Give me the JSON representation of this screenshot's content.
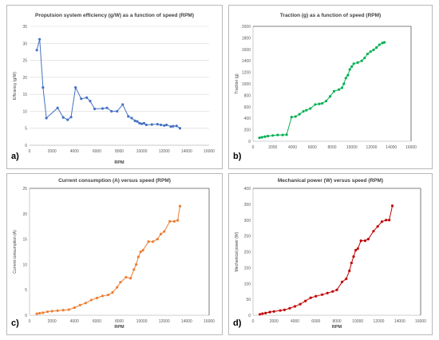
{
  "chart_data": [
    {
      "type": "line",
      "panel_label": "a)",
      "title": "Propulsion system efficiency (g/W) as a function of speed (RPM)",
      "xlabel": "RPM",
      "ylabel": "Efficiency (g/W)",
      "xlim": [
        0,
        16000
      ],
      "ylim": [
        0,
        35
      ],
      "xticks": [
        0,
        2000,
        4000,
        6000,
        8000,
        10000,
        12000,
        14000,
        16000
      ],
      "yticks": [
        0,
        5,
        10,
        15,
        20,
        25,
        30,
        35
      ],
      "grid": true,
      "color": "#4472c4",
      "x": [
        650,
        900,
        1200,
        1500,
        2500,
        3000,
        3400,
        3700,
        4100,
        4600,
        5100,
        5400,
        5800,
        6500,
        6900,
        7300,
        7800,
        8300,
        8800,
        9100,
        9400,
        9600,
        9800,
        10000,
        10200,
        10400,
        10900,
        11400,
        11700,
        12000,
        12200,
        12600,
        12800,
        13100,
        13400
      ],
      "y": [
        28,
        31.2,
        17,
        8,
        11,
        8.2,
        7.5,
        8.3,
        17,
        13.7,
        14,
        13,
        10.7,
        10.8,
        11,
        10,
        10,
        12,
        8.5,
        8,
        7.2,
        7,
        6.5,
        6.3,
        6.5,
        6,
        6.1,
        6.2,
        6,
        5.8,
        6,
        5.5,
        5.6,
        5.7,
        5
      ]
    },
    {
      "type": "line",
      "panel_label": "b)",
      "title": "Traction (g) as a function of speed (RPM)",
      "xlabel": "",
      "ylabel": "Traction (g)",
      "xlim": [
        0,
        16000
      ],
      "ylim": [
        0,
        2000
      ],
      "xticks": [
        0,
        2000,
        4000,
        6000,
        8000,
        10000,
        12000,
        14000,
        16000
      ],
      "yticks": [
        0,
        200,
        400,
        600,
        800,
        1000,
        1200,
        1400,
        1600,
        1800,
        2000
      ],
      "grid": false,
      "color": "#00b050",
      "x": [
        650,
        900,
        1200,
        1500,
        2000,
        2500,
        3000,
        3400,
        3900,
        4300,
        4700,
        5100,
        5400,
        5800,
        6300,
        6700,
        7000,
        7400,
        7800,
        8200,
        8700,
        9000,
        9200,
        9400,
        9600,
        9800,
        10000,
        10200,
        10600,
        11000,
        11300,
        11600,
        11900,
        12200,
        12500,
        12800,
        13100,
        13300
      ],
      "y": [
        60,
        70,
        80,
        90,
        100,
        110,
        110,
        115,
        420,
        430,
        470,
        520,
        540,
        570,
        640,
        650,
        660,
        700,
        780,
        870,
        900,
        930,
        1000,
        1100,
        1150,
        1250,
        1300,
        1350,
        1370,
        1400,
        1450,
        1520,
        1560,
        1590,
        1630,
        1680,
        1710,
        1720
      ]
    },
    {
      "type": "line",
      "panel_label": "c)",
      "title": "Current consumption (A) versus speed (RPM)",
      "xlabel": "RPM",
      "ylabel": "Current consumption (A)",
      "xlim": [
        0,
        16000
      ],
      "ylim": [
        0,
        25
      ],
      "xticks": [
        0,
        2000,
        4000,
        6000,
        8000,
        10000,
        12000,
        14000,
        16000
      ],
      "yticks": [
        0,
        5,
        10,
        15,
        20,
        25
      ],
      "grid": false,
      "color": "#ed7d31",
      "x": [
        650,
        900,
        1200,
        1600,
        2000,
        2500,
        3000,
        3500,
        4000,
        4500,
        5000,
        5500,
        6000,
        6500,
        7000,
        7400,
        7800,
        8100,
        8600,
        9000,
        9300,
        9500,
        9700,
        9900,
        10100,
        10600,
        11000,
        11400,
        11700,
        12000,
        12500,
        12900,
        13200,
        13400
      ],
      "y": [
        0.3,
        0.4,
        0.5,
        0.7,
        0.8,
        0.9,
        1,
        1.1,
        1.5,
        2,
        2.4,
        3,
        3.4,
        3.8,
        4,
        4.5,
        5.5,
        6.5,
        7.5,
        7.3,
        9,
        10,
        11.5,
        12.5,
        12.8,
        14.5,
        14.5,
        15,
        16,
        16.5,
        18.5,
        18.5,
        18.7,
        21.5
      ]
    },
    {
      "type": "line",
      "panel_label": "d)",
      "title": "Mechanical power (W) versus speed (RPM)",
      "xlabel": "RPM",
      "ylabel": "Mechanical power (W)",
      "xlim": [
        0,
        16000
      ],
      "ylim": [
        0,
        400
      ],
      "xticks": [
        0,
        2000,
        4000,
        6000,
        8000,
        10000,
        12000,
        14000,
        16000
      ],
      "yticks": [
        0,
        50,
        100,
        150,
        200,
        250,
        300,
        350,
        400
      ],
      "grid": false,
      "color": "#c00000",
      "x": [
        650,
        900,
        1200,
        1600,
        2000,
        2600,
        3000,
        3500,
        4000,
        4500,
        5000,
        5500,
        6000,
        6600,
        7100,
        7600,
        8000,
        8500,
        8900,
        9200,
        9400,
        9600,
        9800,
        10000,
        10300,
        10700,
        11000,
        11500,
        11900,
        12300,
        12700,
        13000,
        13300
      ],
      "y": [
        3,
        5,
        7,
        10,
        12,
        15,
        17,
        22,
        28,
        35,
        45,
        55,
        60,
        65,
        70,
        75,
        80,
        105,
        115,
        140,
        165,
        185,
        205,
        210,
        235,
        235,
        240,
        265,
        280,
        295,
        300,
        300,
        345
      ]
    }
  ]
}
